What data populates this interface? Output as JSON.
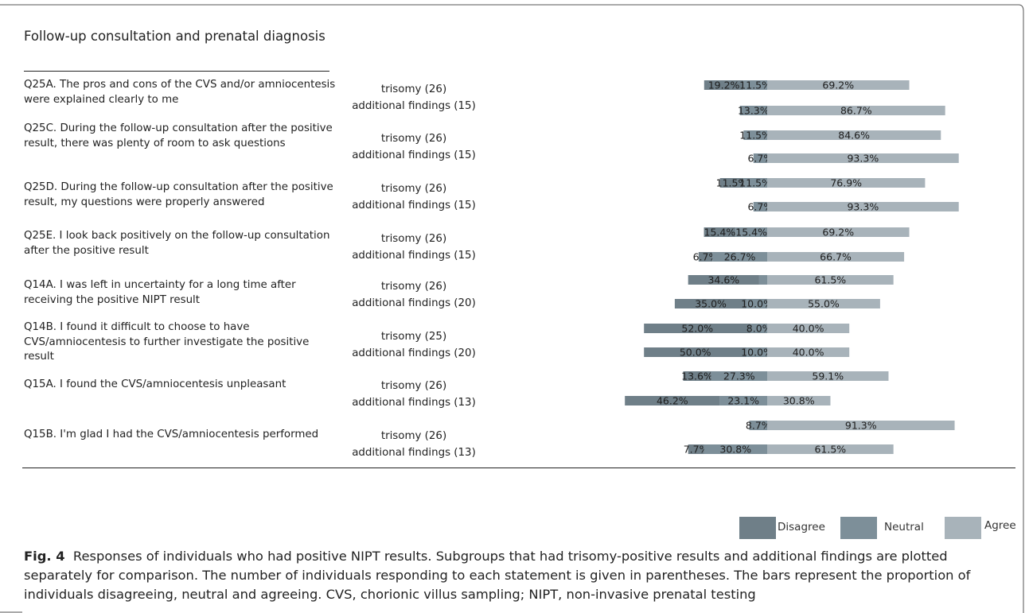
{
  "section_title": "Follow-up consultation and prenatal diagnosis",
  "questions": [
    {
      "text": "Q25A. The pros and cons of the CVS and/or amniocentesis were explained clearly to me",
      "groups": [
        "trisomy (26)",
        "additional findings (15)"
      ]
    },
    {
      "text": "Q25C. During the follow-up consultation after the positive result, there was plenty of room to ask questions",
      "groups": [
        "trisomy (26)",
        "additional findings (15)"
      ]
    },
    {
      "text": "Q25D. During the follow-up consultation after the positive result, my questions were properly answered",
      "groups": [
        "trisomy (26)",
        "additional findings (15)"
      ]
    },
    {
      "text": "Q25E. I look back positively on the follow-up consultation after the positive result",
      "groups": [
        "trisomy (26)",
        "additional findings (15)"
      ]
    },
    {
      "text": "Q14A. I was left in uncertainty for a long time after receiving the positive NIPT result",
      "groups": [
        "trisomy (26)",
        "additional findings (20)"
      ]
    },
    {
      "text": "Q14B. I found it difficult to choose to have CVS/amniocentesis to further investigate the positive result",
      "groups": [
        "trisomy (25)",
        "additional findings (20)"
      ]
    },
    {
      "text": "Q15A. I found the CVS/amniocentesis unpleasant",
      "groups": [
        "trisomy (26)",
        "additional findings (13)"
      ]
    },
    {
      "text": "Q15B. I'm glad I had the CVS/amniocentesis performed",
      "groups": [
        "trisomy (26)",
        "additional findings (13)"
      ]
    }
  ],
  "chart_data": {
    "type": "bar",
    "orientation": "horizontal-diverging-stacked",
    "series_names": [
      "Disagree",
      "Neutral",
      "Agree"
    ],
    "colors": {
      "Disagree": "#6f7f88",
      "Neutral": "#7d8f99",
      "Agree": "#a8b3ba"
    },
    "rows": [
      {
        "label": "trisomy (26)",
        "disagree": 19.2,
        "neutral": 11.5,
        "agree": 69.2,
        "labels": [
          "19.2%",
          "11.5%",
          "69.2%"
        ]
      },
      {
        "label": "additional findings (15)",
        "disagree": 0,
        "neutral": 13.3,
        "agree": 86.7,
        "labels": [
          "",
          "13.3%",
          "86.7%"
        ]
      },
      {
        "label": "trisomy (26)",
        "disagree": 0,
        "neutral": 11.5,
        "agree": 84.6,
        "labels": [
          "",
          "11.5%",
          "84.6%"
        ]
      },
      {
        "label": "additional findings (15)",
        "disagree": 0,
        "neutral": 6.7,
        "agree": 93.3,
        "labels": [
          "",
          "6.7%",
          "93.3%"
        ]
      },
      {
        "label": "trisomy (26)",
        "disagree": 11.5,
        "neutral": 11.5,
        "agree": 76.9,
        "labels": [
          "11.5%",
          "11.5%",
          "76.9%"
        ]
      },
      {
        "label": "additional findings (15)",
        "disagree": 0,
        "neutral": 6.7,
        "agree": 93.3,
        "labels": [
          "",
          "6.7%",
          "93.3%"
        ]
      },
      {
        "label": "trisomy (26)",
        "disagree": 15.4,
        "neutral": 15.4,
        "agree": 69.2,
        "labels": [
          "15.4%",
          "15.4%",
          "69.2%"
        ]
      },
      {
        "label": "additional findings (15)",
        "disagree": 6.7,
        "neutral": 26.7,
        "agree": 66.7,
        "labels": [
          "6.7%",
          "26.7%",
          "66.7%"
        ]
      },
      {
        "label": "trisomy (26)",
        "disagree": 34.6,
        "neutral": 3.9,
        "agree": 61.5,
        "labels": [
          "34.6%",
          "",
          "61.5%"
        ]
      },
      {
        "label": "additional findings (20)",
        "disagree": 35.0,
        "neutral": 10.0,
        "agree": 55.0,
        "labels": [
          "35.0%",
          "10.0%",
          "55.0%"
        ]
      },
      {
        "label": "trisomy (25)",
        "disagree": 52.0,
        "neutral": 8.0,
        "agree": 40.0,
        "labels": [
          "52.0%",
          "8.0%",
          "40.0%"
        ]
      },
      {
        "label": "additional findings (20)",
        "disagree": 50.0,
        "neutral": 10.0,
        "agree": 40.0,
        "labels": [
          "50.0%",
          "10.0%",
          "40.0%"
        ]
      },
      {
        "label": "trisomy (26)",
        "disagree": 13.6,
        "neutral": 27.3,
        "agree": 59.1,
        "labels": [
          "13.6%",
          "27.3%",
          "59.1%"
        ]
      },
      {
        "label": "additional findings (13)",
        "disagree": 46.2,
        "neutral": 23.1,
        "agree": 30.8,
        "labels": [
          "46.2%",
          "23.1%",
          "30.8%"
        ]
      },
      {
        "label": "trisomy (26)",
        "disagree": 0,
        "neutral": 8.7,
        "agree": 91.3,
        "labels": [
          "",
          "8.7%",
          "91.3%"
        ]
      },
      {
        "label": "additional findings (13)",
        "disagree": 7.7,
        "neutral": 30.8,
        "agree": 61.5,
        "labels": [
          "7.7%",
          "30.8%",
          "61.5%"
        ]
      }
    ],
    "legend": [
      "Disagree",
      "Neutral",
      "Agree"
    ],
    "legend_position": "bottom-right",
    "grid": false
  },
  "caption": {
    "label": "Fig. 4",
    "text": "Responses of individuals who had positive NIPT results. Subgroups that had trisomy-positive results and additional findings are plotted separately for comparison. The number of individuals responding to each statement is given in parentheses. The bars represent the proportion of individuals disagreeing, neutral and agreeing. CVS, chorionic villus sampling; NIPT, non-invasive prenatal testing"
  }
}
